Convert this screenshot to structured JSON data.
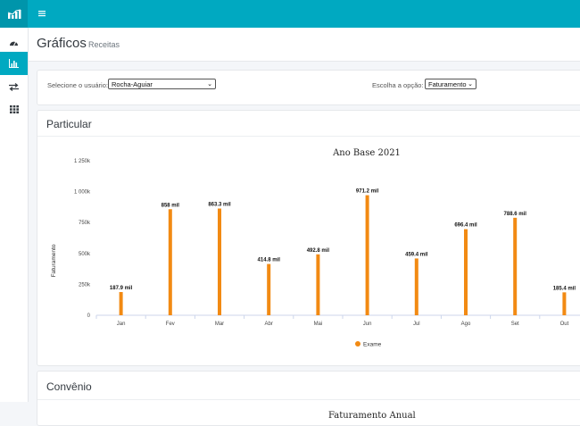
{
  "header": {
    "menu_icon": "hamburger-icon",
    "logo_icon": "chart-logo-icon"
  },
  "sidebar": {
    "items": [
      {
        "icon": "dashboard-icon"
      },
      {
        "icon": "bar-chart-icon",
        "active": true
      },
      {
        "icon": "exchange-icon"
      },
      {
        "icon": "grid-icon"
      }
    ]
  },
  "page": {
    "title": "Gráficos",
    "subtitle": "Receitas"
  },
  "filters": {
    "user_label": "Selecione o usuário:",
    "user_value": "Rocha-Aguiar",
    "option_label": "Escolha a opção:",
    "option_value": "Faturamento"
  },
  "cards": [
    {
      "title": "Particular"
    },
    {
      "title": "Convênio"
    }
  ],
  "chart_data": [
    {
      "type": "bar",
      "title": "Ano Base 2021",
      "ylabel": "Faturamento",
      "xlabel": "",
      "categories": [
        "Jan",
        "Fev",
        "Mar",
        "Abr",
        "Mai",
        "Jun",
        "Jul",
        "Ago",
        "Set",
        "Out"
      ],
      "series": [
        {
          "name": "Exame",
          "values": [
            187.9,
            858,
            863.3,
            414.8,
            492.8,
            971.2,
            459.4,
            696.4,
            788.6,
            185.4
          ],
          "labels": [
            "187.9 mil",
            "858 mil",
            "863.3 mil",
            "414.8 mil",
            "492.8 mil",
            "971.2 mil",
            "459.4 mil",
            "696.4 mil",
            "788.6 mil",
            "185.4 mil"
          ],
          "color": "#f28a13"
        }
      ],
      "yticks": [
        "0",
        "250k",
        "500k",
        "750k",
        "1 000k",
        "1 250k"
      ],
      "ytick_values": [
        0,
        250,
        500,
        750,
        1000,
        1250
      ],
      "ylim": [
        0,
        1250
      ],
      "legend": "bottom-center",
      "grid": false
    },
    {
      "type": "bar",
      "title": "Faturamento Anual"
    }
  ]
}
